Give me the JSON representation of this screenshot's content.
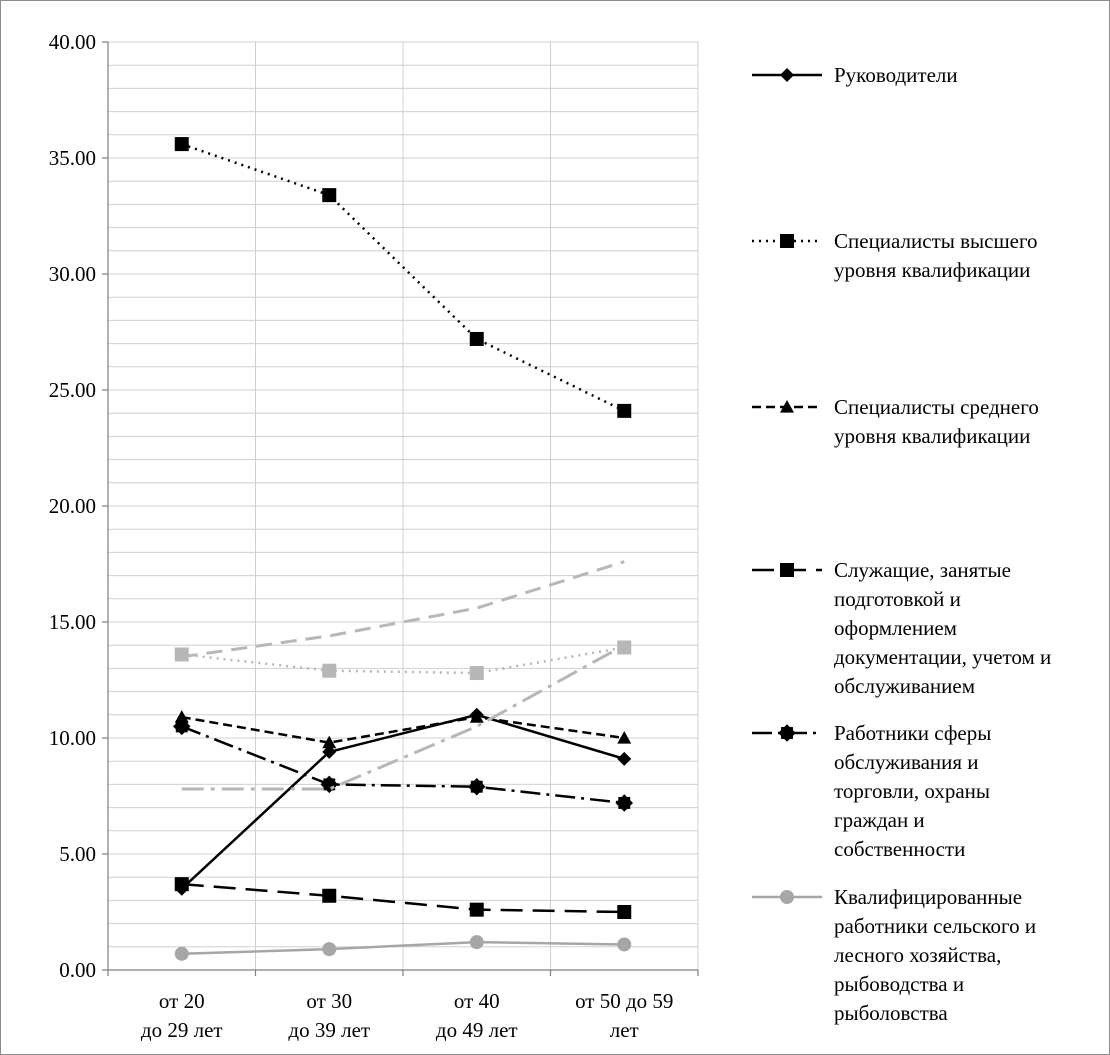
{
  "chart_data": {
    "type": "line",
    "title": "",
    "xlabel": "",
    "ylabel": "",
    "ylim": [
      0,
      40
    ],
    "y_ticks": [
      "0.00",
      "5.00",
      "10.00",
      "15.00",
      "20.00",
      "25.00",
      "30.00",
      "35.00",
      "40.00"
    ],
    "categories": [
      [
        "от 20",
        "до 29 лет"
      ],
      [
        "от 30",
        "до 39 лет"
      ],
      [
        "от 40",
        "до 49 лет"
      ],
      [
        "от 50 до 59",
        "лет"
      ]
    ],
    "grid": true,
    "legend_position": "right",
    "series": [
      {
        "name": "Руководители",
        "legend_lines": [
          "Руководители"
        ],
        "values": [
          3.5,
          9.4,
          11.0,
          9.1
        ],
        "color": "#000000",
        "dash": "",
        "marker": "diamond",
        "width": 2.5,
        "in_legend": true
      },
      {
        "name": "Специалисты высшего уровня квалификации",
        "legend_lines": [
          "Специалисты высшего",
          "уровня квалификации"
        ],
        "values": [
          35.6,
          33.4,
          27.2,
          24.1
        ],
        "color": "#000000",
        "dash": "2,5",
        "marker": "square",
        "width": 2.5,
        "in_legend": true
      },
      {
        "name": "Специалисты среднего уровня квалификации",
        "legend_lines": [
          "Специалисты среднего",
          "уровня квалификации"
        ],
        "values": [
          10.9,
          9.8,
          10.9,
          10.0
        ],
        "color": "#000000",
        "dash": "9,5",
        "marker": "triangle",
        "width": 2.5,
        "in_legend": true
      },
      {
        "name": "Служащие, занятые подготовкой и оформлением документации, учетом и обслуживанием",
        "legend_lines": [
          "Служащие, занятые",
          "подготовкой и",
          "оформлением",
          "документации, учетом и",
          "обслуживанием"
        ],
        "values": [
          3.7,
          3.2,
          2.6,
          2.5
        ],
        "color": "#000000",
        "dash": "22,10",
        "marker": "square",
        "width": 2.5,
        "in_legend": true
      },
      {
        "name": "Работники сферы обслуживания и торговли, охраны граждан и собственности",
        "legend_lines": [
          "Работники сферы",
          "обслуживания и",
          "торговли, охраны",
          "граждан и",
          "собственности"
        ],
        "values": [
          10.5,
          8.0,
          7.9,
          7.2
        ],
        "color": "#000000",
        "dash": "20,6,3,6",
        "marker": "star",
        "width": 2.5,
        "in_legend": true
      },
      {
        "name": "Квалифицированные работники сельского и лесного хозяйства, рыбоводства и рыболовства",
        "legend_lines": [
          "Квалифицированные",
          "работники сельского и",
          "лесного хозяйства,",
          "рыбоводства и",
          "рыболовства"
        ],
        "values": [
          0.7,
          0.9,
          1.2,
          1.1
        ],
        "color": "#a6a6a6",
        "dash": "",
        "marker": "circle",
        "width": 2.5,
        "in_legend": true
      },
      {
        "name": "",
        "values": [
          13.6,
          12.9,
          12.8,
          13.9
        ],
        "color": "#b7b7b7",
        "dash": "2,5",
        "marker": "square",
        "width": 2.5,
        "in_legend": false
      },
      {
        "name": "",
        "values": [
          13.5,
          14.4,
          15.6,
          17.6
        ],
        "color": "#b7b7b7",
        "dash": "16,9",
        "marker": "none",
        "width": 3,
        "in_legend": false
      },
      {
        "name": "",
        "values": [
          7.8,
          7.8,
          10.5,
          14.0
        ],
        "color": "#b7b7b7",
        "dash": "22,7,4,7",
        "marker": "none",
        "width": 3,
        "in_legend": false
      }
    ]
  }
}
